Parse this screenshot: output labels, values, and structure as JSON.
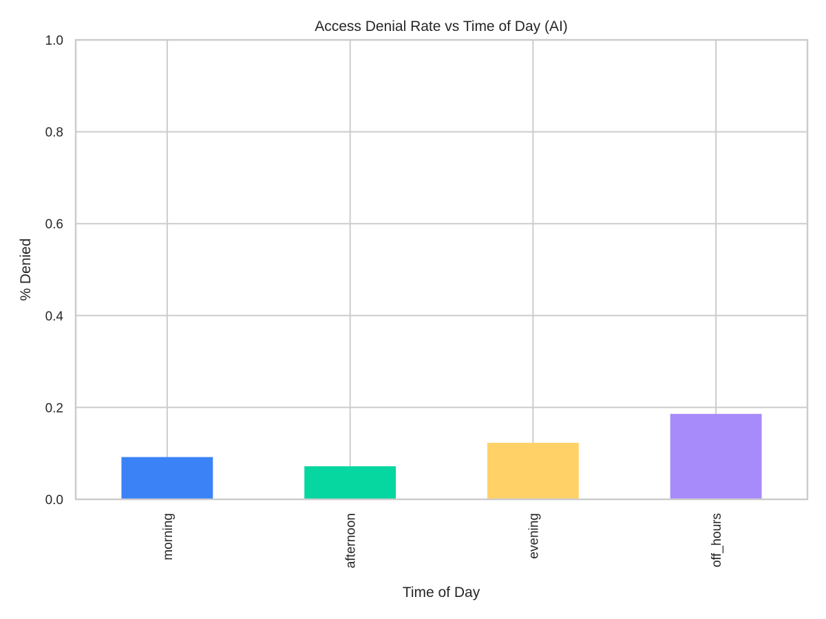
{
  "chart_data": {
    "type": "bar",
    "title": "Access Denial Rate vs Time of Day (AI)",
    "xlabel": "Time of Day",
    "ylabel": "% Denied",
    "categories": [
      "morning",
      "afternoon",
      "evening",
      "off_hours"
    ],
    "values": [
      0.092,
      0.072,
      0.123,
      0.186
    ],
    "colors": [
      "#3b82f6",
      "#06d6a0",
      "#ffd166",
      "#a78bfa"
    ],
    "ylim": [
      0,
      1.0
    ],
    "yticks": [
      "0.0",
      "0.2",
      "0.4",
      "0.6",
      "0.8",
      "1.0"
    ],
    "grid": true,
    "legend": "none"
  }
}
